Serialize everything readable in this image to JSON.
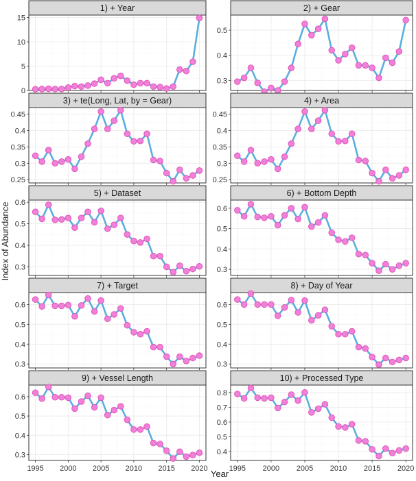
{
  "xlabel": "Year",
  "ylabel": "Index of Abundance",
  "x_ticks": [
    1995,
    2000,
    2005,
    2010,
    2015,
    2020
  ],
  "colors": {
    "line": "#5aafdc",
    "point": "#f080d8",
    "strip": "#d9d9d9"
  },
  "chart_data": [
    {
      "type": "line",
      "title": "1) + Year",
      "ylim": [
        0,
        15.5
      ],
      "yticks": [
        0,
        5,
        10,
        15
      ],
      "x": [
        1995,
        1996,
        1997,
        1998,
        1999,
        2000,
        2001,
        2002,
        2003,
        2004,
        2005,
        2006,
        2007,
        2008,
        2009,
        2010,
        2011,
        2012,
        2013,
        2014,
        2015,
        2016,
        2017,
        2018,
        2019,
        2020
      ],
      "values": [
        0.25,
        0.3,
        0.35,
        0.3,
        0.3,
        0.6,
        0.9,
        0.8,
        1.0,
        1.4,
        2.2,
        1.5,
        2.5,
        3.0,
        2.0,
        1.2,
        1.5,
        1.5,
        0.8,
        0.7,
        0.4,
        0.8,
        4.3,
        4.0,
        5.9,
        14.9
      ]
    },
    {
      "type": "line",
      "title": "2) + Gear",
      "ylim": [
        0.26,
        0.56
      ],
      "yticks": [
        0.3,
        0.4,
        0.5
      ],
      "x": [
        1995,
        1996,
        1997,
        1998,
        1999,
        2000,
        2001,
        2002,
        2003,
        2004,
        2005,
        2006,
        2007,
        2008,
        2009,
        2010,
        2011,
        2012,
        2013,
        2014,
        2015,
        2016,
        2017,
        2018,
        2019,
        2020
      ],
      "values": [
        0.295,
        0.31,
        0.35,
        0.29,
        0.255,
        0.27,
        0.26,
        0.295,
        0.35,
        0.445,
        0.525,
        0.48,
        0.505,
        0.545,
        0.42,
        0.38,
        0.405,
        0.43,
        0.36,
        0.36,
        0.35,
        0.31,
        0.39,
        0.37,
        0.415,
        0.54
      ]
    },
    {
      "type": "line",
      "title": "3) + te(Long, Lat, by = Gear)",
      "ylim": [
        0.24,
        0.47
      ],
      "yticks": [
        0.25,
        0.3,
        0.35,
        0.4,
        0.45
      ],
      "x": [
        1995,
        1996,
        1997,
        1998,
        1999,
        2000,
        2001,
        2002,
        2003,
        2004,
        2005,
        2006,
        2007,
        2008,
        2009,
        2010,
        2011,
        2012,
        2013,
        2014,
        2015,
        2016,
        2017,
        2018,
        2019,
        2020
      ],
      "values": [
        0.323,
        0.305,
        0.34,
        0.3,
        0.305,
        0.312,
        0.283,
        0.32,
        0.36,
        0.405,
        0.458,
        0.405,
        0.43,
        0.462,
        0.39,
        0.367,
        0.368,
        0.39,
        0.31,
        0.307,
        0.27,
        0.245,
        0.28,
        0.254,
        0.263,
        0.278
      ]
    },
    {
      "type": "line",
      "title": "4) + Area",
      "ylim": [
        0.24,
        0.47
      ],
      "yticks": [
        0.25,
        0.3,
        0.35,
        0.4,
        0.45
      ],
      "x": [
        1995,
        1996,
        1997,
        1998,
        1999,
        2000,
        2001,
        2002,
        2003,
        2004,
        2005,
        2006,
        2007,
        2008,
        2009,
        2010,
        2011,
        2012,
        2013,
        2014,
        2015,
        2016,
        2017,
        2018,
        2019,
        2020
      ],
      "values": [
        0.323,
        0.305,
        0.34,
        0.3,
        0.305,
        0.312,
        0.283,
        0.32,
        0.36,
        0.405,
        0.458,
        0.405,
        0.43,
        0.462,
        0.39,
        0.367,
        0.368,
        0.39,
        0.31,
        0.307,
        0.27,
        0.245,
        0.28,
        0.254,
        0.263,
        0.28
      ]
    },
    {
      "type": "line",
      "title": "5) + Dataset",
      "ylim": [
        0.26,
        0.61
      ],
      "yticks": [
        0.3,
        0.4,
        0.5,
        0.6
      ],
      "x": [
        1995,
        1996,
        1997,
        1998,
        1999,
        2000,
        2001,
        2002,
        2003,
        2004,
        2005,
        2006,
        2007,
        2008,
        2009,
        2010,
        2011,
        2012,
        2013,
        2014,
        2015,
        2016,
        2017,
        2018,
        2019,
        2020
      ],
      "values": [
        0.555,
        0.523,
        0.588,
        0.518,
        0.52,
        0.527,
        0.482,
        0.527,
        0.555,
        0.507,
        0.56,
        0.477,
        0.495,
        0.527,
        0.45,
        0.42,
        0.413,
        0.43,
        0.35,
        0.35,
        0.3,
        0.275,
        0.305,
        0.28,
        0.29,
        0.302
      ]
    },
    {
      "type": "line",
      "title": "6) + Bottom Depth",
      "ylim": [
        0.27,
        0.64
      ],
      "yticks": [
        0.3,
        0.4,
        0.5,
        0.6
      ],
      "x": [
        1995,
        1996,
        1997,
        1998,
        1999,
        2000,
        2001,
        2002,
        2003,
        2004,
        2005,
        2006,
        2007,
        2008,
        2009,
        2010,
        2011,
        2012,
        2013,
        2014,
        2015,
        2016,
        2017,
        2018,
        2019,
        2020
      ],
      "values": [
        0.59,
        0.56,
        0.62,
        0.557,
        0.553,
        0.56,
        0.517,
        0.565,
        0.6,
        0.547,
        0.605,
        0.51,
        0.53,
        0.565,
        0.48,
        0.445,
        0.437,
        0.455,
        0.375,
        0.37,
        0.33,
        0.293,
        0.325,
        0.3,
        0.318,
        0.33
      ]
    },
    {
      "type": "line",
      "title": "7) + Target",
      "ylim": [
        0.28,
        0.66
      ],
      "yticks": [
        0.3,
        0.4,
        0.5,
        0.6
      ],
      "x": [
        1995,
        1996,
        1997,
        1998,
        1999,
        2000,
        2001,
        2002,
        2003,
        2004,
        2005,
        2006,
        2007,
        2008,
        2009,
        2010,
        2011,
        2012,
        2013,
        2014,
        2015,
        2016,
        2017,
        2018,
        2019,
        2020
      ],
      "values": [
        0.625,
        0.59,
        0.648,
        0.593,
        0.593,
        0.597,
        0.54,
        0.595,
        0.63,
        0.565,
        0.62,
        0.528,
        0.55,
        0.58,
        0.495,
        0.46,
        0.45,
        0.465,
        0.385,
        0.385,
        0.337,
        0.3,
        0.337,
        0.315,
        0.33,
        0.342
      ]
    },
    {
      "type": "line",
      "title": "8) + Day of Year",
      "ylim": [
        0.28,
        0.66
      ],
      "yticks": [
        0.3,
        0.4,
        0.5,
        0.6
      ],
      "x": [
        1995,
        1996,
        1997,
        1998,
        1999,
        2000,
        2001,
        2002,
        2003,
        2004,
        2005,
        2006,
        2007,
        2008,
        2009,
        2010,
        2011,
        2012,
        2013,
        2014,
        2015,
        2016,
        2017,
        2018,
        2019,
        2020
      ],
      "values": [
        0.625,
        0.6,
        0.655,
        0.6,
        0.6,
        0.6,
        0.543,
        0.585,
        0.622,
        0.56,
        0.62,
        0.52,
        0.545,
        0.573,
        0.49,
        0.45,
        0.45,
        0.465,
        0.385,
        0.378,
        0.335,
        0.297,
        0.33,
        0.31,
        0.32,
        0.33
      ]
    },
    {
      "type": "line",
      "title": "9) + Vessel Length",
      "ylim": [
        0.27,
        0.66
      ],
      "yticks": [
        0.3,
        0.4,
        0.5,
        0.6
      ],
      "x": [
        1995,
        1996,
        1997,
        1998,
        1999,
        2000,
        2001,
        2002,
        2003,
        2004,
        2005,
        2006,
        2007,
        2008,
        2009,
        2010,
        2011,
        2012,
        2013,
        2014,
        2015,
        2016,
        2017,
        2018,
        2019,
        2020
      ],
      "values": [
        0.62,
        0.59,
        0.65,
        0.597,
        0.597,
        0.595,
        0.538,
        0.575,
        0.605,
        0.545,
        0.595,
        0.505,
        0.53,
        0.55,
        0.48,
        0.43,
        0.43,
        0.445,
        0.36,
        0.355,
        0.32,
        0.28,
        0.315,
        0.29,
        0.298,
        0.31
      ]
    },
    {
      "type": "line",
      "title": "10) + Processed Type",
      "ylim": [
        0.34,
        0.85
      ],
      "yticks": [
        0.4,
        0.5,
        0.6,
        0.7,
        0.8
      ],
      "x": [
        1995,
        1996,
        1997,
        1998,
        1999,
        2000,
        2001,
        2002,
        2003,
        2004,
        2005,
        2006,
        2007,
        2008,
        2009,
        2010,
        2011,
        2012,
        2013,
        2014,
        2015,
        2016,
        2017,
        2018,
        2019,
        2020
      ],
      "values": [
        0.79,
        0.76,
        0.83,
        0.765,
        0.76,
        0.765,
        0.695,
        0.735,
        0.785,
        0.745,
        0.8,
        0.665,
        0.69,
        0.72,
        0.63,
        0.57,
        0.563,
        0.585,
        0.475,
        0.47,
        0.415,
        0.37,
        0.42,
        0.39,
        0.408,
        0.42
      ]
    }
  ]
}
